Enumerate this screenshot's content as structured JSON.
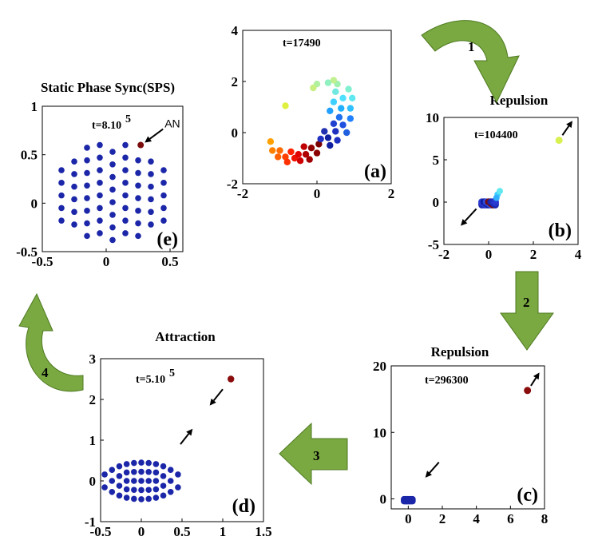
{
  "colors": {
    "arrow_green": "#79a940",
    "arrow_green_dark": "#4f7a23",
    "dot_blue": "#1b27a8",
    "dot_dark_red": "#7a0c0c"
  },
  "steps": [
    {
      "id": "1",
      "label": "1"
    },
    {
      "id": "2",
      "label": "2"
    },
    {
      "id": "3",
      "label": "3"
    },
    {
      "id": "4",
      "label": "4"
    }
  ],
  "chart_data": [
    {
      "id": "a",
      "type": "scatter",
      "panel_label": "(a)",
      "title": "",
      "time_label": "t=17490",
      "xlim": [
        -2,
        2
      ],
      "ylim": [
        -2,
        4
      ],
      "xticks": [
        -2,
        0,
        2
      ],
      "yticks": [
        -2,
        0,
        2,
        4
      ],
      "points": [
        {
          "x": -1.25,
          "y": -0.35,
          "c": "#ffa000"
        },
        {
          "x": -1.2,
          "y": -0.7,
          "c": "#ff8000"
        },
        {
          "x": -1.05,
          "y": -0.95,
          "c": "#ff6000"
        },
        {
          "x": -1.0,
          "y": -0.7,
          "c": "#ff6a00"
        },
        {
          "x": -0.85,
          "y": -0.95,
          "c": "#ff4000"
        },
        {
          "x": -0.8,
          "y": -1.15,
          "c": "#ff3000"
        },
        {
          "x": -0.7,
          "y": -0.75,
          "c": "#ff2000"
        },
        {
          "x": -0.6,
          "y": -1.0,
          "c": "#f01000"
        },
        {
          "x": -0.5,
          "y": -0.85,
          "c": "#e00000"
        },
        {
          "x": -0.45,
          "y": -1.1,
          "c": "#d00000"
        },
        {
          "x": -0.35,
          "y": -0.55,
          "c": "#c00000"
        },
        {
          "x": -0.3,
          "y": -0.85,
          "c": "#b00000"
        },
        {
          "x": -0.2,
          "y": -1.05,
          "c": "#a00000"
        },
        {
          "x": -0.15,
          "y": -0.6,
          "c": "#900000"
        },
        {
          "x": 0.0,
          "y": -0.8,
          "c": "#8a0000"
        },
        {
          "x": 0.05,
          "y": -0.45,
          "c": "#7a0000"
        },
        {
          "x": 0.1,
          "y": -0.25,
          "c": "#2030c0"
        },
        {
          "x": 0.3,
          "y": -0.2,
          "c": "#1020a0"
        },
        {
          "x": 0.35,
          "y": -0.5,
          "c": "#1020a0"
        },
        {
          "x": 0.2,
          "y": 0.05,
          "c": "#2030b0"
        },
        {
          "x": 0.5,
          "y": 0.05,
          "c": "#1d30c0"
        },
        {
          "x": 0.55,
          "y": -0.3,
          "c": "#1d30c0"
        },
        {
          "x": 0.45,
          "y": 0.35,
          "c": "#2040d0"
        },
        {
          "x": 0.7,
          "y": 0.3,
          "c": "#2050e0"
        },
        {
          "x": 0.8,
          "y": 0.0,
          "c": "#2060e0"
        },
        {
          "x": 0.6,
          "y": 0.6,
          "c": "#2070f0"
        },
        {
          "x": 0.9,
          "y": 0.55,
          "c": "#2080ff"
        },
        {
          "x": 0.35,
          "y": 0.85,
          "c": "#20a0ff"
        },
        {
          "x": 0.65,
          "y": 0.95,
          "c": "#20b0ff"
        },
        {
          "x": 0.9,
          "y": 0.95,
          "c": "#30c0ff"
        },
        {
          "x": 0.45,
          "y": 1.2,
          "c": "#40d0ff"
        },
        {
          "x": 0.7,
          "y": 1.35,
          "c": "#50e0ff"
        },
        {
          "x": 0.95,
          "y": 1.35,
          "c": "#60e8f0"
        },
        {
          "x": 0.5,
          "y": 1.6,
          "c": "#70e8e0"
        },
        {
          "x": 0.85,
          "y": 1.7,
          "c": "#80f0d0"
        },
        {
          "x": 0.3,
          "y": 1.95,
          "c": "#90f0c0"
        },
        {
          "x": 0.55,
          "y": 1.9,
          "c": "#a0f0b0"
        },
        {
          "x": 0.0,
          "y": 1.9,
          "c": "#b0f0a0"
        },
        {
          "x": 0.45,
          "y": 2.05,
          "c": "#c0f090"
        },
        {
          "x": -0.1,
          "y": 1.75,
          "c": "#c8f080"
        },
        {
          "x": -0.85,
          "y": 1.05,
          "c": "#e0f040"
        }
      ]
    },
    {
      "id": "b",
      "type": "scatter",
      "panel_label": "(b)",
      "title": "Repulsion",
      "time_label": "t=104400",
      "xlim": [
        -2,
        4
      ],
      "ylim": [
        -5,
        10
      ],
      "xticks": [
        -2,
        0,
        2,
        4
      ],
      "yticks": [
        -5,
        0,
        5,
        10
      ],
      "outlier": {
        "x": 3.15,
        "y": 7.3,
        "c": "#d8f050"
      },
      "cluster": {
        "cx": 0.0,
        "cy": -0.15,
        "spread_x": 0.6,
        "spread_y": 0.35
      },
      "extra_points": [
        {
          "x": 0.4,
          "y": 0.9,
          "c": "#40d0ff"
        },
        {
          "x": 0.5,
          "y": 1.3,
          "c": "#60e8f0"
        },
        {
          "x": 0.35,
          "y": 0.5,
          "c": "#30b0ff"
        }
      ],
      "arrows": [
        {
          "x1": 3.3,
          "y1": 7.9,
          "x2": 3.75,
          "y2": 9.6
        },
        {
          "x1": -0.55,
          "y1": -0.8,
          "x2": -1.25,
          "y2": -2.8
        }
      ]
    },
    {
      "id": "c",
      "type": "scatter",
      "panel_label": "(c)",
      "title": "Repulsion",
      "time_label": "t=296300",
      "xlim": [
        -1,
        8
      ],
      "ylim": [
        -1.5,
        20
      ],
      "xticks": [
        0,
        2,
        4,
        6,
        8
      ],
      "yticks": [
        0,
        10,
        20
      ],
      "outlier": {
        "x": 7.0,
        "y": 16.3,
        "c": "#8a0c0c"
      },
      "cluster": {
        "cx": 0.0,
        "cy": -0.2,
        "spread_x": 0.5,
        "spread_y": 0.3
      },
      "arrows": [
        {
          "x1": 7.2,
          "y1": 17.0,
          "x2": 7.7,
          "y2": 19.0
        },
        {
          "x1": 1.8,
          "y1": 5.5,
          "x2": 1.0,
          "y2": 3.2
        }
      ]
    },
    {
      "id": "d",
      "type": "scatter",
      "panel_label": "(d)",
      "title": "Attraction",
      "time_label": "t=5.10",
      "time_exp": "5",
      "xlim": [
        -0.5,
        1.5
      ],
      "ylim": [
        -1,
        3
      ],
      "xticks": [
        -0.5,
        0,
        0.5,
        1,
        1.5
      ],
      "yticks": [
        -1,
        0,
        1,
        2,
        3
      ],
      "outlier": {
        "x": 1.1,
        "y": 2.5,
        "c": "#8a0c0c"
      },
      "ellipse": {
        "cx": 0.0,
        "cy": 0.0,
        "rx": 0.45,
        "ry": 0.45
      },
      "arrows": [
        {
          "x1": 1.0,
          "y1": 2.25,
          "x2": 0.84,
          "y2": 1.85
        },
        {
          "x1": 0.48,
          "y1": 0.9,
          "x2": 0.63,
          "y2": 1.28
        }
      ]
    },
    {
      "id": "e",
      "type": "scatter",
      "panel_label": "(e)",
      "title": "Static Phase Sync(SPS)",
      "time_label": "t=8.10",
      "time_exp": "5",
      "annotation": "AN",
      "xlim": [
        -0.5,
        0.6
      ],
      "ylim": [
        -0.5,
        1
      ],
      "xticks": [
        -0.5,
        0,
        0.5
      ],
      "yticks": [
        -0.5,
        0,
        0.5,
        1
      ],
      "an_point": {
        "x": 0.27,
        "y": 0.6,
        "c": "#7a0c0c"
      },
      "points_grid": {
        "cx": 0.05,
        "cy": 0.12,
        "rx": 0.45,
        "ry": 0.5
      }
    }
  ]
}
